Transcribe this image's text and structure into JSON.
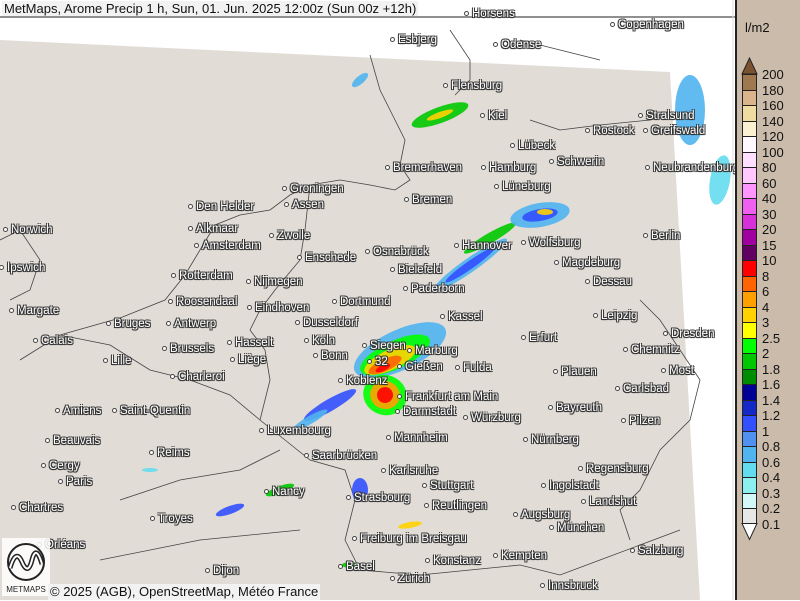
{
  "title": "MetMaps, Arome Precip 1 h, Sun, 01. Jun. 2025 12:00z (Sun 00z +12h)",
  "attribution": "© 2025 (AGB), OpenStreetMap, Météo France",
  "logo_text": "METMAPS",
  "legend": {
    "unit": "l/m2",
    "over_color": "#7a5230",
    "under_color": "#ffffff",
    "labels": [
      "200",
      "180",
      "160",
      "140",
      "120",
      "100",
      "80",
      "60",
      "40",
      "30",
      "20",
      "15",
      "10",
      "8",
      "6",
      "4",
      "3",
      "2.5",
      "2",
      "1.8",
      "1.6",
      "1.4",
      "1.2",
      "1",
      "0.8",
      "0.6",
      "0.4",
      "0.3",
      "0.2",
      "0.1"
    ],
    "colors": [
      "#a07850",
      "#dcb48c",
      "#f0dca0",
      "#fbf0d2",
      "#fff8ff",
      "#ffe0ff",
      "#ffc8ff",
      "#ff96ff",
      "#f060f0",
      "#d830d8",
      "#a000a0",
      "#600060",
      "#ff0000",
      "#ff6400",
      "#ffa000",
      "#ffd200",
      "#ffff00",
      "#00ff00",
      "#00c800",
      "#008c00",
      "#000096",
      "#1428c8",
      "#3250ff",
      "#5090f0",
      "#50b4f0",
      "#64dcf0",
      "#8cf0f0",
      "#d2f8f8",
      "#e6e6e6"
    ]
  },
  "map": {
    "land_color": "#e1dcd6",
    "cities": [
      "Horsens",
      "Copenhagen",
      "Esbjerg",
      "Odense",
      "Flensburg",
      "Kiel",
      "Stralsund",
      "Rostock",
      "Greifswald",
      "Lübeck",
      "Schwerin",
      "Bremerhaven",
      "Hamburg",
      "Neubrandenburg",
      "Groningen",
      "Lüneburg",
      "Den Helder",
      "Assen",
      "Bremen",
      "Norwich",
      "Alkmaar",
      "Zwolle",
      "Hannover",
      "Wolfsburg",
      "Berlin",
      "Amsterdam",
      "Osnabrück",
      "Enschede",
      "Ipswich",
      "Bielefeld",
      "Magdeburg",
      "Rotterdam",
      "Nijmegen",
      "Dessau",
      "Paderborn",
      "Margate",
      "Roosendaal",
      "Eindhoven",
      "Dortmund",
      "Bruges",
      "Antwerp",
      "Dusseldorf",
      "Kassel",
      "Leipzig",
      "Calais",
      "Hasselt",
      "Brussels",
      "Köln",
      "Siegen",
      "Marburg",
      "Erfurt",
      "Dresden",
      "Chemnitz",
      "Lille",
      "Liège",
      "Bonn",
      "32",
      "Gießen",
      "Fulda",
      "Plauen",
      "Most",
      "Charleroi",
      "Koblenz",
      "Carlsbad",
      "Frankfurt am Main",
      "Amiens",
      "Saint-Quentin",
      "Darmstadt",
      "Würzburg",
      "Bayreuth",
      "Pilzen",
      "Luxembourg",
      "Mannheim",
      "Nürnberg",
      "Beauvais",
      "Reims",
      "Saarbrücken",
      "Regensburg",
      "Cergy",
      "Paris",
      "Karlsruhe",
      "Ingolstadt",
      "Stuttgart",
      "Nancy",
      "Strasbourg",
      "Landshut",
      "Reutlingen",
      "Chartres",
      "Augsburg",
      "Troyes",
      "München",
      "Freiburg im Breisgau",
      "Orléans",
      "Salzburg",
      "Kempten",
      "Konstanz",
      "Basel",
      "Zürich",
      "Innsbruck",
      "Dijon"
    ]
  }
}
